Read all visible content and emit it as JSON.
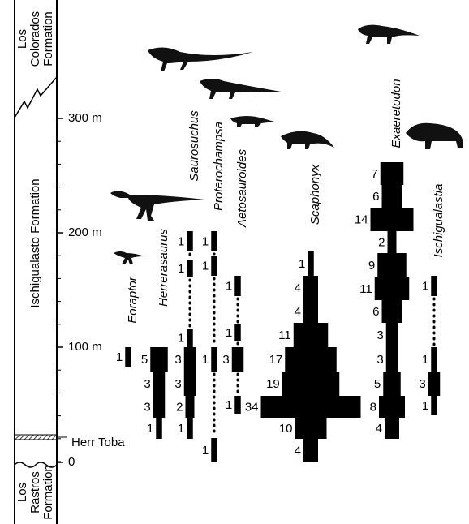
{
  "stratigraphy": {
    "upper_formation": [
      "Los",
      "Colorados",
      "Formation"
    ],
    "main_formation": "Ischigualasto Formation",
    "marker_bed": "Herr Toba",
    "lower_formation": [
      "Los",
      "Rastros",
      "Formation"
    ],
    "scale": [
      "300 m",
      "200 m",
      "100 m",
      "0"
    ]
  },
  "taxa": [
    {
      "name": "Eoraptor",
      "counts": [
        1
      ]
    },
    {
      "name": "Herrerasaurus",
      "counts": [
        5,
        3,
        3,
        1
      ]
    },
    {
      "name": "Saurosuchus",
      "counts": [
        1,
        1,
        1,
        3,
        3,
        2,
        1
      ]
    },
    {
      "name": "Proterochampsa",
      "counts": [
        1,
        1,
        1,
        1
      ]
    },
    {
      "name": "Aetosauroides",
      "counts": [
        1,
        1,
        3,
        1
      ]
    },
    {
      "name": "Scaphonyx",
      "counts": [
        1,
        4,
        4,
        11,
        17,
        19,
        34,
        10,
        4
      ]
    },
    {
      "name": "Exaeretodon",
      "counts": [
        7,
        6,
        14,
        2,
        9,
        11,
        6,
        3,
        3,
        5,
        8,
        4
      ]
    },
    {
      "name": "Ischigualastia",
      "counts": [
        1,
        1,
        3,
        1
      ]
    }
  ]
}
